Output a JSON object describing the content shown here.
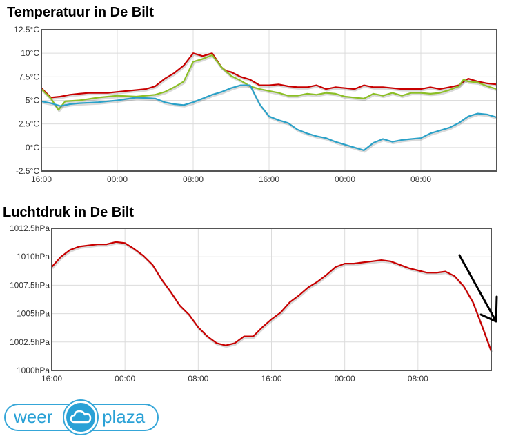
{
  "chart_data": [
    {
      "type": "line",
      "title": "Temperatuur in De Bilt",
      "y_ticks": [
        "12.5°C",
        "10°C",
        "7.5°C",
        "5°C",
        "2.5°C",
        "0°C",
        "-2.5°C"
      ],
      "x_ticks": [
        "16:00",
        "00:00",
        "08:00",
        "16:00",
        "00:00",
        "08:00"
      ],
      "ylim": [
        -2.5,
        12.5
      ],
      "x_range_hours": [
        0,
        48
      ],
      "grid": true,
      "series": [
        {
          "color": "#c80000",
          "x": [
            0,
            1,
            2,
            3,
            4,
            5,
            6,
            7,
            8,
            9,
            10,
            11,
            12,
            13,
            14,
            15,
            16,
            17,
            18,
            19,
            19.5,
            20,
            21,
            22,
            22.5,
            23,
            24,
            25,
            26,
            27,
            28,
            29,
            30,
            31,
            32,
            33,
            34,
            35,
            36,
            37,
            38,
            39,
            40,
            41,
            42,
            43,
            44,
            44.5,
            45,
            46,
            47,
            48
          ],
          "values": [
            6.3,
            5.3,
            5.4,
            5.6,
            5.7,
            5.8,
            5.8,
            5.8,
            5.9,
            6.0,
            6.1,
            6.2,
            6.5,
            7.3,
            7.9,
            8.7,
            10.0,
            9.7,
            10.0,
            8.5,
            8.1,
            8.0,
            7.5,
            7.2,
            6.9,
            6.6,
            6.6,
            6.7,
            6.5,
            6.4,
            6.4,
            6.6,
            6.2,
            6.4,
            6.3,
            6.2,
            6.6,
            6.4,
            6.4,
            6.3,
            6.2,
            6.2,
            6.2,
            6.4,
            6.2,
            6.4,
            6.6,
            7.0,
            7.3,
            7.0,
            6.8,
            6.7
          ]
        },
        {
          "color": "#8cbf26",
          "x": [
            0,
            1,
            1.8,
            2.5,
            4,
            6,
            8,
            10,
            12,
            13,
            14,
            15,
            16,
            17,
            18,
            19,
            20,
            21,
            22,
            23,
            24,
            25,
            26,
            27,
            28,
            29,
            30,
            31,
            32,
            33,
            34,
            35,
            36,
            37,
            38,
            39,
            40,
            41,
            42,
            43,
            44,
            44.5,
            45,
            46,
            47,
            48
          ],
          "values": [
            6.2,
            5.2,
            4.0,
            4.9,
            5.0,
            5.3,
            5.5,
            5.4,
            5.6,
            5.9,
            6.4,
            7.0,
            9.1,
            9.4,
            9.8,
            8.5,
            7.6,
            7.1,
            6.5,
            6.2,
            6.0,
            5.8,
            5.5,
            5.5,
            5.7,
            5.6,
            5.8,
            5.7,
            5.4,
            5.3,
            5.2,
            5.7,
            5.5,
            5.8,
            5.5,
            5.8,
            5.8,
            5.7,
            5.8,
            6.1,
            6.5,
            7.2,
            7.0,
            6.9,
            6.5,
            6.2
          ]
        },
        {
          "color": "#2aa1c8",
          "x": [
            0,
            1,
            2,
            3,
            4,
            6,
            8,
            10,
            12,
            13,
            14,
            15,
            16,
            17,
            18,
            19,
            20,
            21,
            22,
            23,
            24,
            25,
            26,
            27,
            28,
            29,
            30,
            31,
            32,
            33,
            34,
            35,
            36,
            37,
            38,
            39,
            40,
            41,
            42,
            43,
            44,
            45,
            46,
            47,
            48
          ],
          "values": [
            4.9,
            4.7,
            4.4,
            4.6,
            4.7,
            4.8,
            5.0,
            5.3,
            5.2,
            4.8,
            4.6,
            4.5,
            4.8,
            5.2,
            5.6,
            5.9,
            6.3,
            6.6,
            6.6,
            4.6,
            3.3,
            2.9,
            2.6,
            1.9,
            1.5,
            1.2,
            1.0,
            0.6,
            0.3,
            0.0,
            -0.3,
            0.5,
            0.9,
            0.6,
            0.8,
            0.9,
            1.0,
            1.5,
            1.8,
            2.1,
            2.6,
            3.3,
            3.6,
            3.5,
            3.2
          ]
        }
      ]
    },
    {
      "type": "line",
      "title": "Luchtdruk in De Bilt",
      "y_ticks": [
        "1012.5hPa",
        "1010hPa",
        "1007.5hPa",
        "1005hPa",
        "1002.5hPa",
        "1000hPa"
      ],
      "x_ticks": [
        "16:00",
        "00:00",
        "08:00",
        "16:00",
        "00:00",
        "08:00"
      ],
      "ylim": [
        1000,
        1012.5
      ],
      "x_range_hours": [
        0,
        48
      ],
      "grid": true,
      "series": [
        {
          "color": "#c80000",
          "x": [
            0,
            1,
            2,
            3,
            4,
            5,
            6,
            7,
            8,
            9,
            10,
            11,
            12,
            13,
            14,
            15,
            16,
            17,
            18,
            19,
            20,
            21,
            22,
            23,
            24,
            25,
            26,
            27,
            28,
            29,
            30,
            31,
            32,
            33,
            34,
            35,
            36,
            37,
            38,
            39,
            40,
            41,
            42,
            43,
            44,
            45,
            46,
            47,
            48
          ],
          "values": [
            1009.1,
            1010.0,
            1010.6,
            1010.9,
            1011.0,
            1011.1,
            1011.1,
            1011.3,
            1011.2,
            1010.7,
            1010.1,
            1009.3,
            1008.0,
            1006.9,
            1005.7,
            1004.9,
            1003.8,
            1003.0,
            1002.4,
            1002.2,
            1002.4,
            1003.0,
            1003.0,
            1003.8,
            1004.5,
            1005.1,
            1006.0,
            1006.6,
            1007.3,
            1007.8,
            1008.4,
            1009.1,
            1009.4,
            1009.4,
            1009.5,
            1009.6,
            1009.7,
            1009.6,
            1009.3,
            1009.0,
            1008.8,
            1008.6,
            1008.6,
            1008.7,
            1008.3,
            1007.4,
            1006.0,
            1003.9,
            1001.7
          ]
        }
      ]
    }
  ],
  "arrow_icon": "arrow-down-right-icon",
  "logo": {
    "left_text": "weer",
    "right_text": "plaza",
    "icon": "cloud-icon"
  }
}
